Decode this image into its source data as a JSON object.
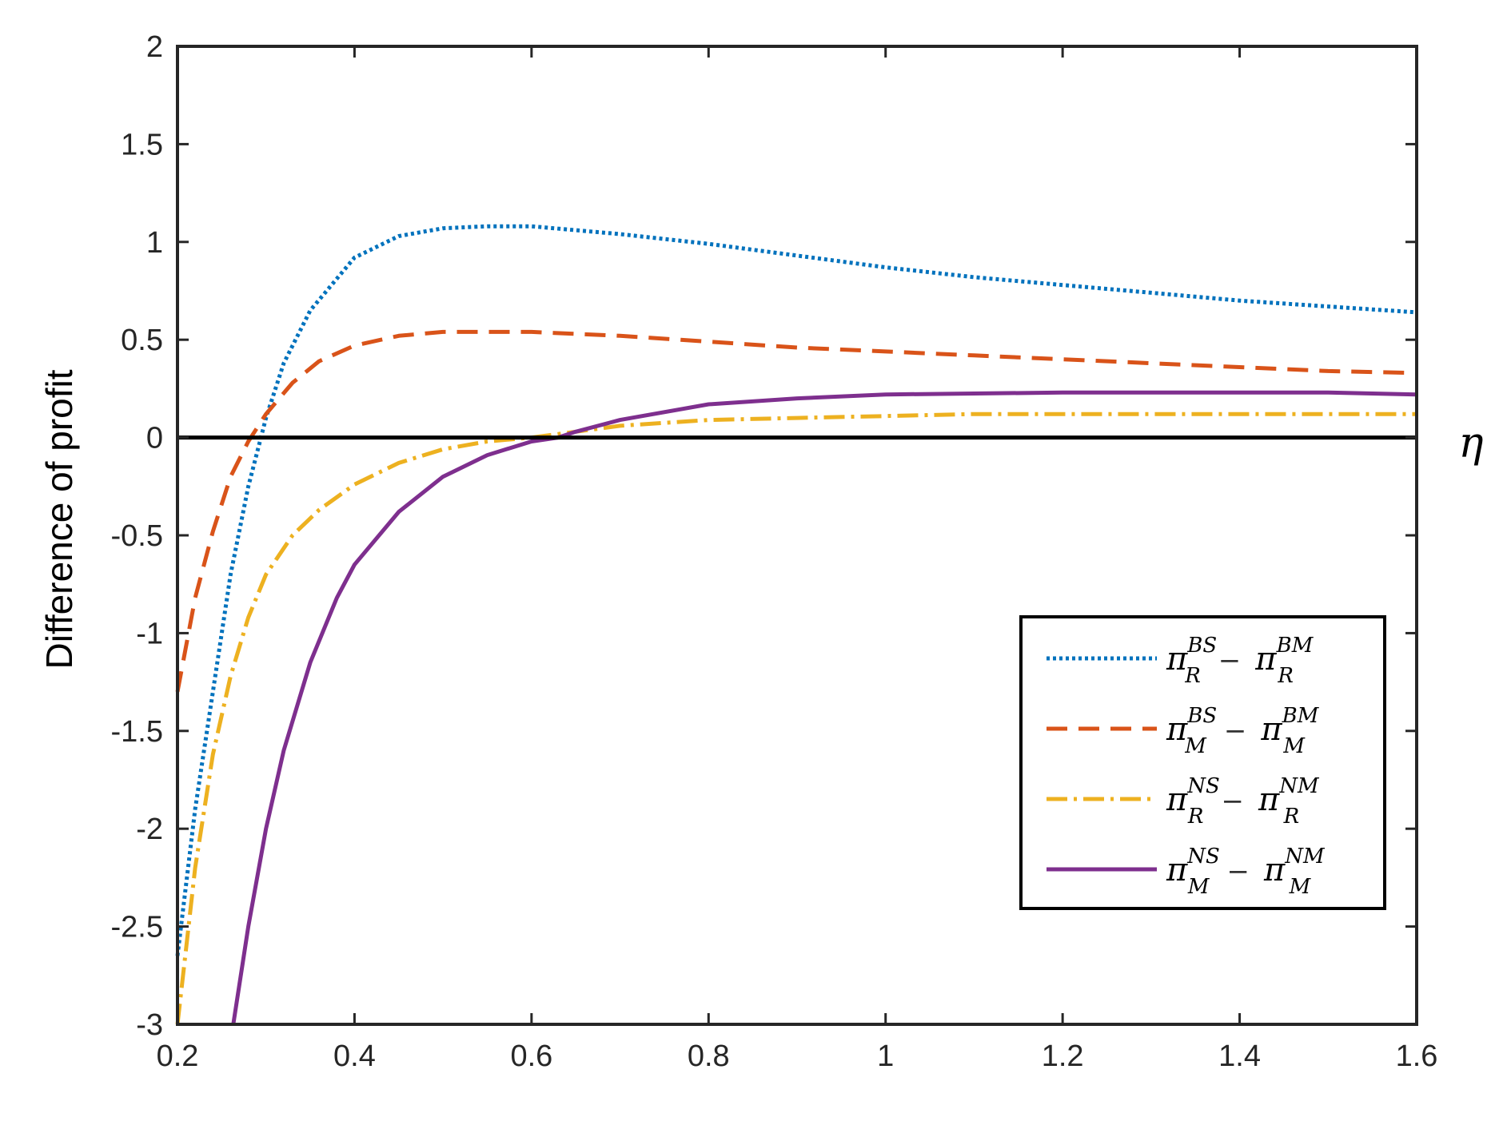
{
  "chart_data": {
    "type": "line",
    "xlabel": "η",
    "ylabel": "Difference of profit",
    "xlim": [
      0.2,
      1.6
    ],
    "ylim": [
      -3,
      2
    ],
    "xticks": [
      0.2,
      0.4,
      0.6,
      0.8,
      1,
      1.2,
      1.4,
      1.6
    ],
    "xtick_labels": [
      "0.2",
      "0.4",
      "0.6",
      "0.8",
      "1",
      "1.2",
      "1.4",
      "1.6"
    ],
    "yticks": [
      2,
      1.5,
      1,
      0.5,
      0,
      -0.5,
      -1,
      -1.5,
      -2,
      -2.5,
      -3
    ],
    "ytick_labels": [
      "2",
      "1.5",
      "1",
      "0.5",
      "0",
      "-0.5",
      "-1",
      "-1.5",
      "-2",
      "-2.5",
      "-3"
    ],
    "grid": false,
    "zero_line": true,
    "legend_position": "lower-right",
    "series": [
      {
        "name": "π_R^BS − π_R^BM",
        "legend": {
          "base": "π",
          "sub": "R",
          "sup": "BS",
          "op": "−",
          "base2": "π",
          "sub2": "R",
          "sup2": "BM"
        },
        "color": "#0072BD",
        "dash": "dotted",
        "x": [
          0.2,
          0.22,
          0.24,
          0.26,
          0.28,
          0.3,
          0.32,
          0.35,
          0.4,
          0.45,
          0.5,
          0.55,
          0.6,
          0.7,
          0.8,
          0.9,
          1.0,
          1.1,
          1.2,
          1.3,
          1.4,
          1.5,
          1.6
        ],
        "y": [
          -2.65,
          -1.9,
          -1.3,
          -0.7,
          -0.25,
          0.1,
          0.38,
          0.65,
          0.92,
          1.03,
          1.07,
          1.08,
          1.08,
          1.04,
          0.99,
          0.93,
          0.87,
          0.82,
          0.78,
          0.74,
          0.7,
          0.67,
          0.64
        ]
      },
      {
        "name": "π_M^BS − π_M^BM",
        "legend": {
          "base": "π",
          "sub": "M",
          "sup": "BS",
          "op": "−",
          "base2": "π",
          "sub2": "M",
          "sup2": "BM"
        },
        "color": "#D95319",
        "dash": "dashed",
        "x": [
          0.2,
          0.22,
          0.24,
          0.26,
          0.28,
          0.3,
          0.33,
          0.36,
          0.4,
          0.45,
          0.5,
          0.55,
          0.6,
          0.7,
          0.8,
          0.9,
          1.0,
          1.1,
          1.2,
          1.3,
          1.4,
          1.5,
          1.6
        ],
        "y": [
          -1.3,
          -0.82,
          -0.48,
          -0.2,
          -0.02,
          0.12,
          0.28,
          0.39,
          0.47,
          0.52,
          0.54,
          0.54,
          0.54,
          0.52,
          0.49,
          0.46,
          0.44,
          0.42,
          0.4,
          0.38,
          0.36,
          0.34,
          0.33
        ]
      },
      {
        "name": "π_R^NS − π_R^NM",
        "legend": {
          "base": "π",
          "sub": "R",
          "sup": "NS",
          "op": "−",
          "base2": "π",
          "sub2": "R",
          "sup2": "NM"
        },
        "color": "#EDB120",
        "dash": "dashdot",
        "x": [
          0.2,
          0.21,
          0.22,
          0.24,
          0.26,
          0.28,
          0.3,
          0.33,
          0.36,
          0.4,
          0.45,
          0.5,
          0.55,
          0.6,
          0.65,
          0.7,
          0.8,
          0.9,
          1.0,
          1.1,
          1.2,
          1.3,
          1.4,
          1.5,
          1.6
        ],
        "y": [
          -3.0,
          -2.6,
          -2.2,
          -1.62,
          -1.22,
          -0.92,
          -0.7,
          -0.5,
          -0.37,
          -0.24,
          -0.13,
          -0.06,
          -0.02,
          0.0,
          0.03,
          0.06,
          0.09,
          0.1,
          0.11,
          0.12,
          0.12,
          0.12,
          0.12,
          0.12,
          0.12
        ]
      },
      {
        "name": "π_M^NS − π_M^NM",
        "legend": {
          "base": "π",
          "sub": "M",
          "sup": "NS",
          "op": "−",
          "base2": "π",
          "sub2": "M",
          "sup2": "NM"
        },
        "color": "#7E2F8E",
        "dash": "solid",
        "x": [
          0.263,
          0.28,
          0.3,
          0.32,
          0.35,
          0.38,
          0.4,
          0.45,
          0.5,
          0.55,
          0.6,
          0.63,
          0.65,
          0.7,
          0.8,
          0.9,
          1.0,
          1.1,
          1.2,
          1.3,
          1.4,
          1.5,
          1.6
        ],
        "y": [
          -3.0,
          -2.5,
          -2.0,
          -1.6,
          -1.15,
          -0.82,
          -0.65,
          -0.38,
          -0.2,
          -0.09,
          -0.02,
          0.0,
          0.03,
          0.09,
          0.17,
          0.2,
          0.22,
          0.225,
          0.23,
          0.23,
          0.23,
          0.23,
          0.22
        ]
      }
    ]
  }
}
